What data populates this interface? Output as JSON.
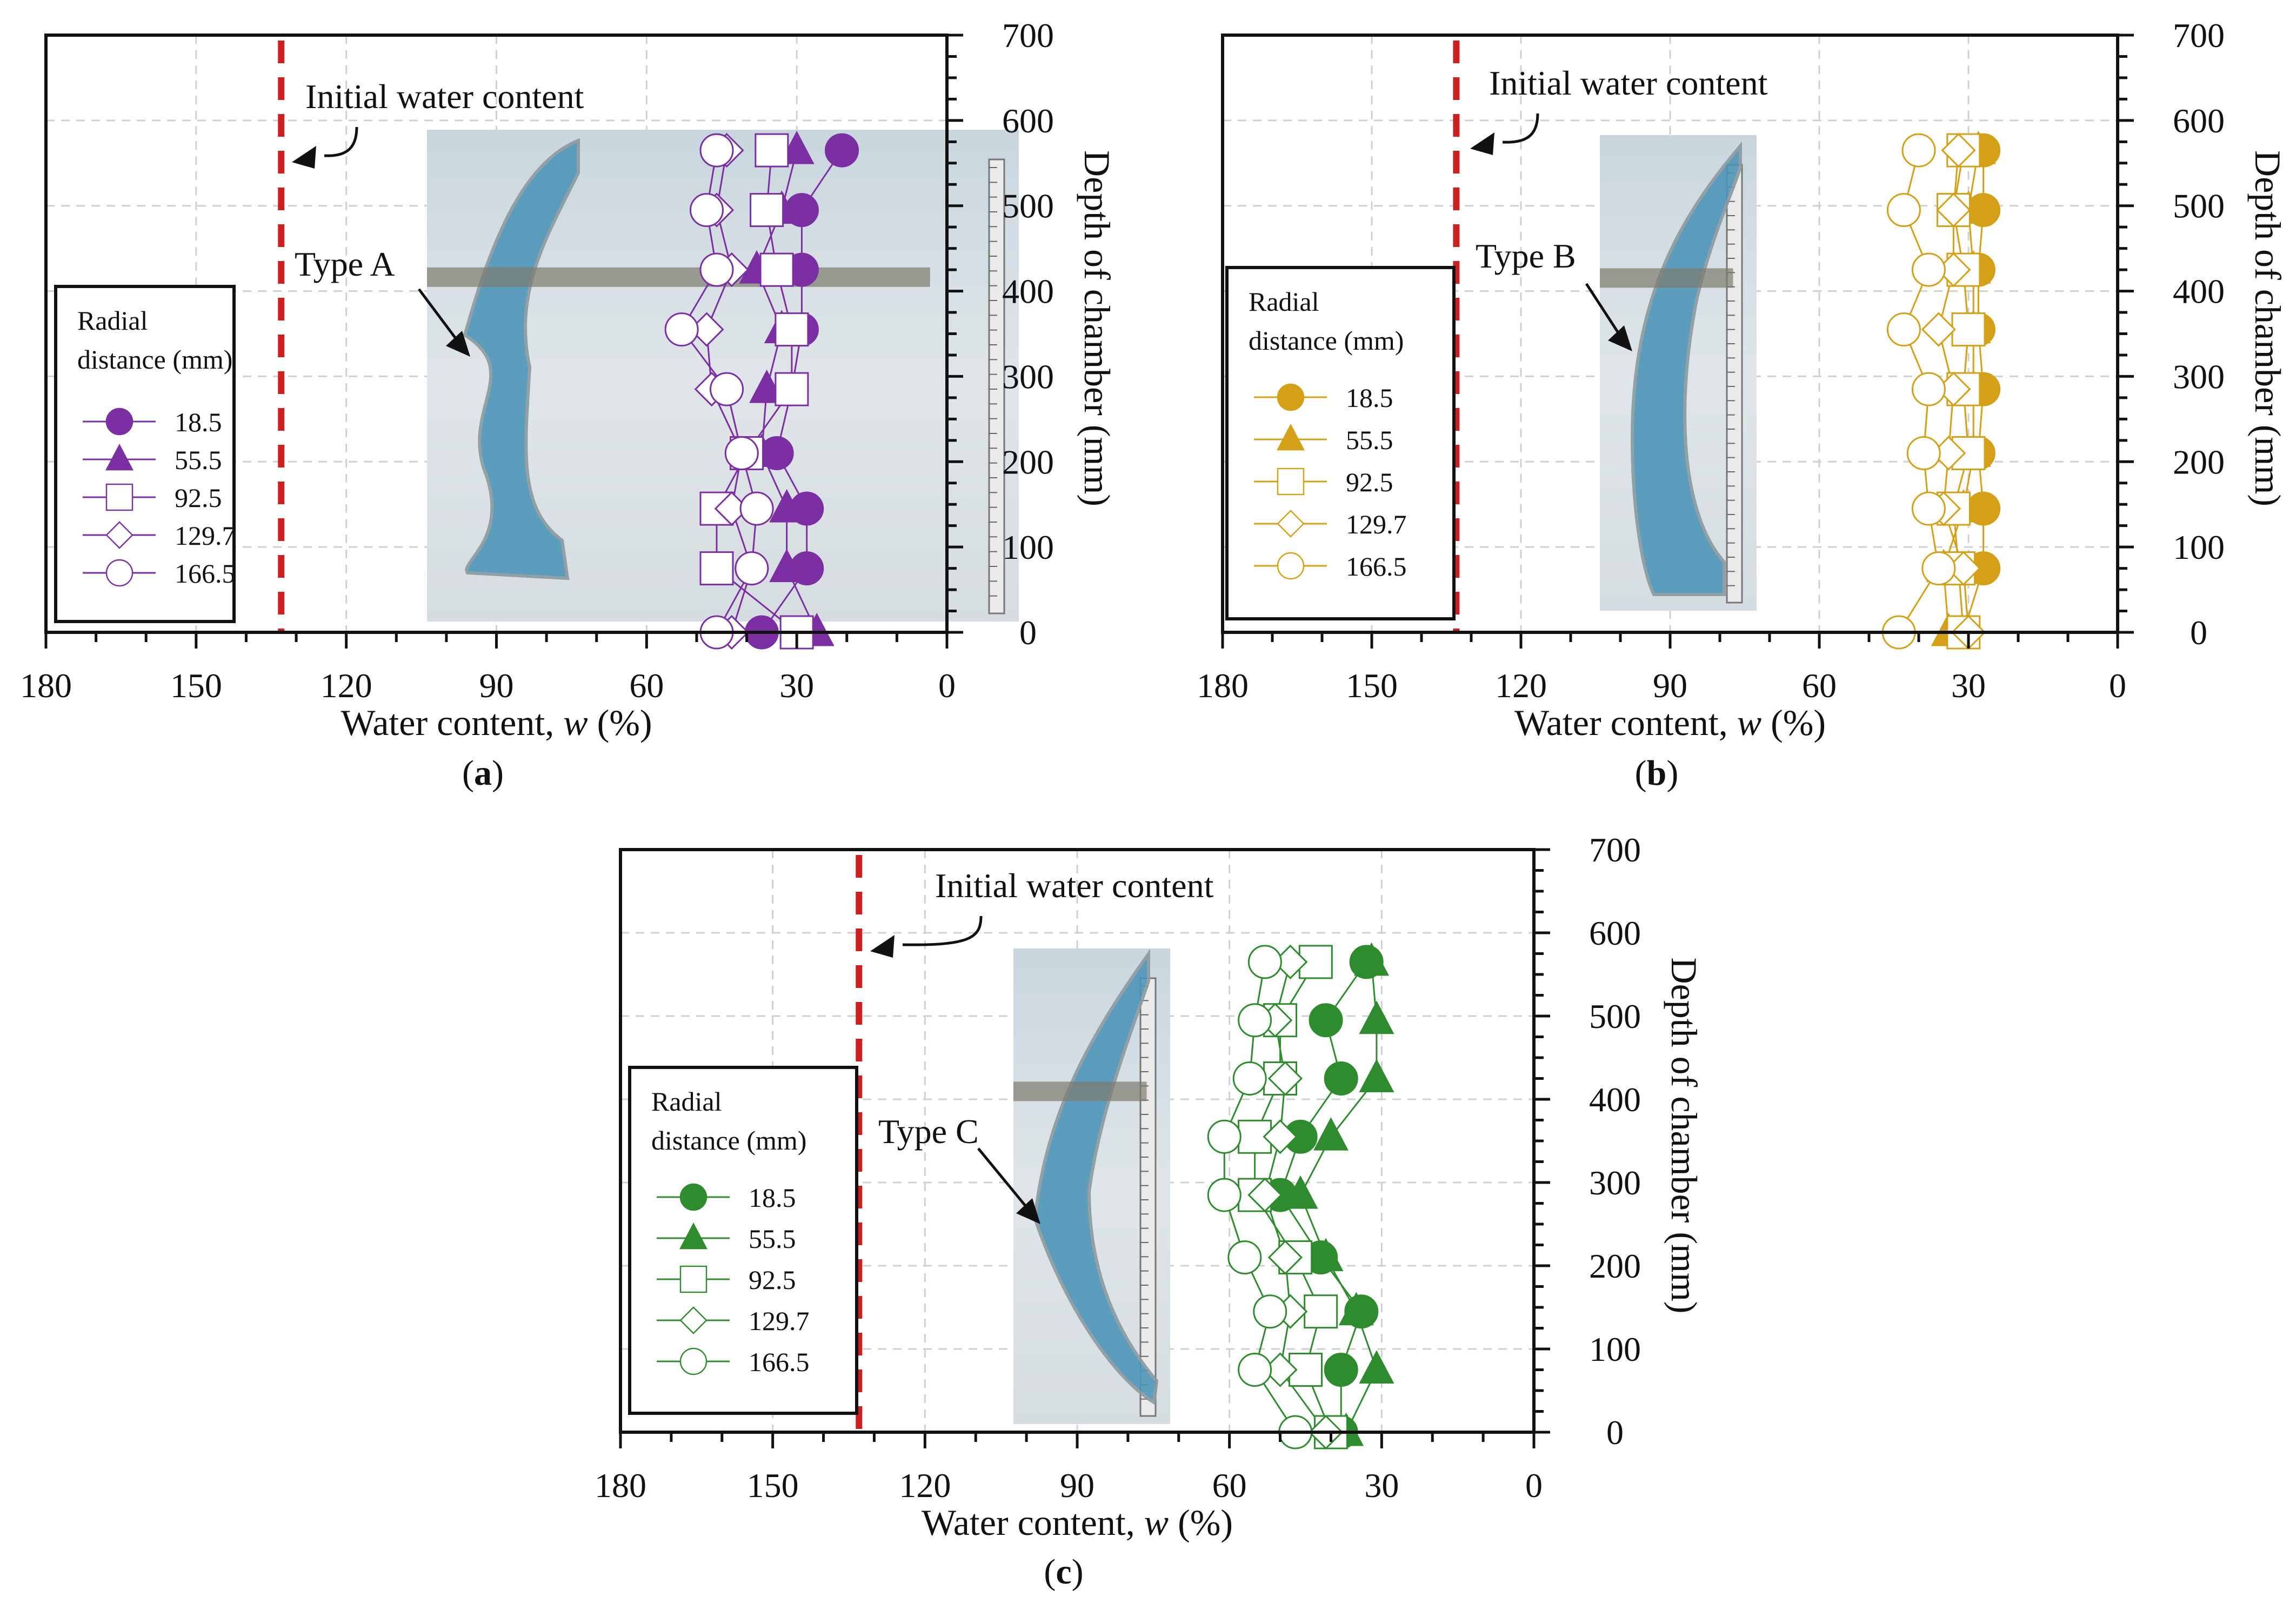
{
  "figure": {
    "panels": [
      {
        "id": "a",
        "caption": "(a)",
        "caption_letter": "a",
        "color": "#7b2fa3",
        "type_label": "Type A"
      },
      {
        "id": "b",
        "caption": "(b)",
        "caption_letter": "b",
        "color": "#d4a017",
        "type_label": "Type B"
      },
      {
        "id": "c",
        "caption": "(c)",
        "caption_letter": "c",
        "color": "#2e8b2e",
        "type_label": "Type C"
      }
    ]
  },
  "chart_data": [
    {
      "type": "scatter",
      "panel": "a",
      "xlabel": "Water content, w (%)",
      "ylabel": "Depth of chamber (mm)",
      "xlim": [
        180,
        0
      ],
      "ylim": [
        0,
        700
      ],
      "x_ticks": [
        "180",
        "150",
        "120",
        "90",
        "60",
        "30",
        "0"
      ],
      "y_ticks": [
        "0",
        "100",
        "200",
        "300",
        "400",
        "500",
        "600",
        "700"
      ],
      "reference_line": {
        "label": "Initial water content",
        "x": 133
      },
      "legend_title": "Radial distance (mm)",
      "legend_title_lines": [
        "Radial",
        "distance (mm)"
      ],
      "series": [
        {
          "name": "18.5",
          "marker": "circle",
          "filled": true,
          "points": [
            [
              37,
              0
            ],
            [
              28,
              75
            ],
            [
              28,
              145
            ],
            [
              34,
              210
            ],
            [
              31,
              285
            ],
            [
              29,
              355
            ],
            [
              29,
              425
            ],
            [
              29,
              495
            ],
            [
              21,
              565
            ]
          ]
        },
        {
          "name": "55.5",
          "marker": "triangle",
          "filled": true,
          "points": [
            [
              26,
              0
            ],
            [
              32,
              75
            ],
            [
              32,
              145
            ],
            [
              37,
              210
            ],
            [
              36,
              285
            ],
            [
              33,
              355
            ],
            [
              38,
              425
            ],
            [
              33,
              495
            ],
            [
              30,
              565
            ]
          ]
        },
        {
          "name": "92.5",
          "marker": "square",
          "filled": false,
          "points": [
            [
              30,
              0
            ],
            [
              46,
              75
            ],
            [
              46,
              145
            ],
            [
              40,
              210
            ],
            [
              31,
              285
            ],
            [
              31,
              355
            ],
            [
              34,
              425
            ],
            [
              36,
              495
            ],
            [
              35,
              565
            ]
          ]
        },
        {
          "name": "129.7",
          "marker": "diamond",
          "filled": false,
          "points": [
            [
              43,
              0
            ],
            [
              39,
              75
            ],
            [
              43,
              145
            ],
            [
              41,
              210
            ],
            [
              47,
              285
            ],
            [
              48,
              355
            ],
            [
              43,
              425
            ],
            [
              46,
              495
            ],
            [
              44,
              565
            ]
          ]
        },
        {
          "name": "166.5",
          "marker": "circle",
          "filled": false,
          "points": [
            [
              46,
              0
            ],
            [
              39,
              75
            ],
            [
              38,
              145
            ],
            [
              41,
              210
            ],
            [
              44,
              285
            ],
            [
              53,
              355
            ],
            [
              46,
              425
            ],
            [
              48,
              495
            ],
            [
              46,
              565
            ]
          ]
        }
      ]
    },
    {
      "type": "scatter",
      "panel": "b",
      "xlabel": "Water content, w (%)",
      "ylabel": "Depth of chamber (mm)",
      "xlim": [
        180,
        0
      ],
      "ylim": [
        0,
        700
      ],
      "x_ticks": [
        "180",
        "150",
        "120",
        "90",
        "60",
        "30",
        "0"
      ],
      "y_ticks": [
        "0",
        "100",
        "200",
        "300",
        "400",
        "500",
        "600",
        "700"
      ],
      "reference_line": {
        "label": "Initial water content",
        "x": 133
      },
      "legend_title": "Radial distance (mm)",
      "legend_title_lines": [
        "Radial",
        "distance (mm)"
      ],
      "series": [
        {
          "name": "18.5",
          "marker": "circle",
          "filled": true,
          "points": [
            [
              31,
              0
            ],
            [
              27,
              75
            ],
            [
              27,
              145
            ],
            [
              28,
              210
            ],
            [
              27,
              285
            ],
            [
              28,
              355
            ],
            [
              28,
              425
            ],
            [
              27,
              495
            ],
            [
              27,
              565
            ]
          ]
        },
        {
          "name": "55.5",
          "marker": "triangle",
          "filled": true,
          "points": [
            [
              34,
              0
            ],
            [
              35,
              75
            ],
            [
              31,
              145
            ],
            [
              29,
              210
            ],
            [
              29,
              285
            ],
            [
              29,
              355
            ],
            [
              29,
              425
            ],
            [
              30,
              495
            ],
            [
              28,
              565
            ]
          ]
        },
        {
          "name": "92.5",
          "marker": "square",
          "filled": false,
          "points": [
            [
              31,
              0
            ],
            [
              32,
              75
            ],
            [
              33,
              145
            ],
            [
              30,
              210
            ],
            [
              31,
              285
            ],
            [
              30,
              355
            ],
            [
              31,
              425
            ],
            [
              33,
              495
            ],
            [
              31,
              565
            ]
          ]
        },
        {
          "name": "129.7",
          "marker": "diamond",
          "filled": false,
          "points": [
            [
              30,
              0
            ],
            [
              31,
              75
            ],
            [
              35,
              145
            ],
            [
              34,
              210
            ],
            [
              33,
              285
            ],
            [
              36,
              355
            ],
            [
              33,
              425
            ],
            [
              33,
              495
            ],
            [
              32,
              565
            ]
          ]
        },
        {
          "name": "166.5",
          "marker": "circle",
          "filled": false,
          "points": [
            [
              44,
              0
            ],
            [
              36,
              75
            ],
            [
              38,
              145
            ],
            [
              39,
              210
            ],
            [
              38,
              285
            ],
            [
              43,
              355
            ],
            [
              38,
              425
            ],
            [
              43,
              495
            ],
            [
              40,
              565
            ]
          ]
        }
      ]
    },
    {
      "type": "scatter",
      "panel": "c",
      "xlabel": "Water content, w (%)",
      "ylabel": "Depth of chamber (mm)",
      "xlim": [
        180,
        0
      ],
      "ylim": [
        0,
        700
      ],
      "x_ticks": [
        "180",
        "150",
        "120",
        "90",
        "60",
        "30",
        "0"
      ],
      "y_ticks": [
        "0",
        "100",
        "200",
        "300",
        "400",
        "500",
        "600",
        "700"
      ],
      "reference_line": {
        "label": "Initial water content",
        "x": 133
      },
      "legend_title": "Radial distance (mm)",
      "legend_title_lines": [
        "Radial",
        "distance (mm)"
      ],
      "series": [
        {
          "name": "18.5",
          "marker": "circle",
          "filled": true,
          "points": [
            [
              38,
              0
            ],
            [
              38,
              75
            ],
            [
              34,
              145
            ],
            [
              42,
              210
            ],
            [
              50,
              285
            ],
            [
              46,
              355
            ],
            [
              38,
              425
            ],
            [
              41,
              495
            ],
            [
              33,
              565
            ]
          ]
        },
        {
          "name": "55.5",
          "marker": "triangle",
          "filled": true,
          "points": [
            [
              37,
              0
            ],
            [
              31,
              75
            ],
            [
              35,
              145
            ],
            [
              41,
              210
            ],
            [
              46,
              285
            ],
            [
              40,
              355
            ],
            [
              31,
              425
            ],
            [
              31,
              495
            ],
            [
              32,
              565
            ]
          ]
        },
        {
          "name": "92.5",
          "marker": "square",
          "filled": false,
          "points": [
            [
              40,
              0
            ],
            [
              45,
              75
            ],
            [
              42,
              145
            ],
            [
              47,
              210
            ],
            [
              55,
              285
            ],
            [
              55,
              355
            ],
            [
              50,
              425
            ],
            [
              50,
              495
            ],
            [
              43,
              565
            ]
          ]
        },
        {
          "name": "129.7",
          "marker": "diamond",
          "filled": false,
          "points": [
            [
              41,
              0
            ],
            [
              50,
              75
            ],
            [
              48,
              145
            ],
            [
              49,
              210
            ],
            [
              53,
              285
            ],
            [
              50,
              355
            ],
            [
              49,
              425
            ],
            [
              51,
              495
            ],
            [
              48,
              565
            ]
          ]
        },
        {
          "name": "166.5",
          "marker": "circle",
          "filled": false,
          "points": [
            [
              47,
              0
            ],
            [
              55,
              75
            ],
            [
              52,
              145
            ],
            [
              57,
              210
            ],
            [
              61,
              285
            ],
            [
              61,
              355
            ],
            [
              56,
              425
            ],
            [
              55,
              495
            ],
            [
              53,
              565
            ]
          ]
        }
      ]
    }
  ]
}
